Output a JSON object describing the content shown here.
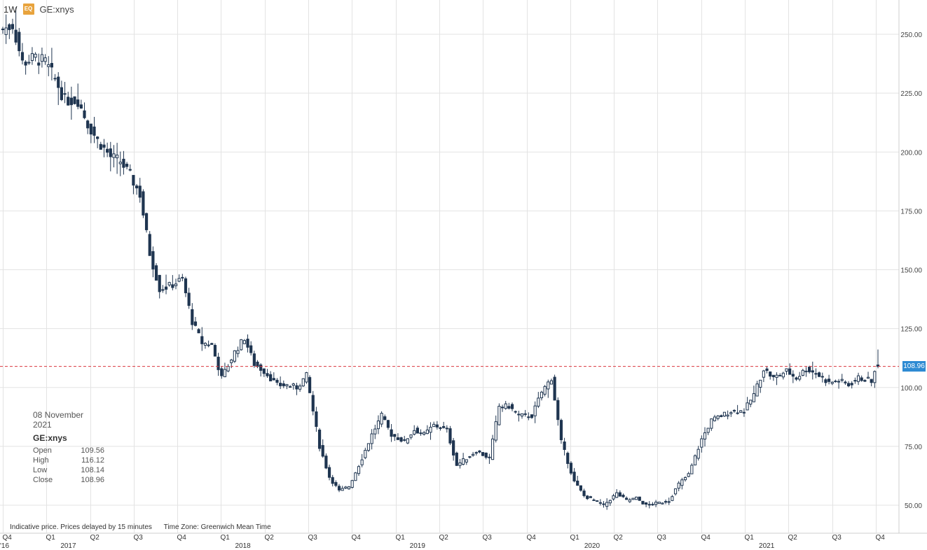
{
  "header": {
    "interval": "1W",
    "badge": "EQ",
    "symbol": "GE:xnys"
  },
  "info": {
    "date": "08 November 2021",
    "symbol": "GE:xnys",
    "rows": [
      {
        "label": "Open",
        "value": "109.56"
      },
      {
        "label": "High",
        "value": "116.12"
      },
      {
        "label": "Low",
        "value": "108.14"
      },
      {
        "label": "Close",
        "value": "108.96"
      }
    ]
  },
  "footer": {
    "note": "Indicative price. Prices delayed by 15 minutes",
    "timezone": "Time Zone: Greenwich Mean Time"
  },
  "last_price_label": "108.96",
  "colors": {
    "candle": "#1f3550",
    "grid": "#e3e3e3",
    "last_line": "#d9363e",
    "price_tag": "#2e8bd3"
  },
  "chart_data": {
    "type": "candlestick",
    "interval": "weekly",
    "ylim": [
      45,
      260
    ],
    "y_ticks": [
      "50.00",
      "75.00",
      "100.00",
      "125.00",
      "150.00",
      "175.00",
      "200.00",
      "225.00",
      "250.00"
    ],
    "y_tick_values": [
      50,
      75,
      100,
      125,
      150,
      175,
      200,
      225,
      250
    ],
    "quarter_labels": [
      "Q4",
      "Q1",
      "Q2",
      "Q3",
      "Q4",
      "Q1",
      "Q2",
      "Q3",
      "Q4",
      "Q1",
      "Q2",
      "Q3",
      "Q4",
      "Q1",
      "Q2",
      "Q3",
      "Q4",
      "Q1",
      "Q2",
      "Q3",
      "Q4"
    ],
    "year_labels": [
      "'16",
      "2017",
      "2018",
      "2019",
      "2020",
      "2021"
    ],
    "last_price": 108.96,
    "last_candle": {
      "open": 109.56,
      "high": 116.12,
      "low": 108.14,
      "close": 108.96
    },
    "close_path": [
      {
        "week": 0,
        "close": 252
      },
      {
        "week": 3,
        "close": 254
      },
      {
        "week": 6,
        "close": 238
      },
      {
        "week": 10,
        "close": 240
      },
      {
        "week": 13,
        "close": 238
      },
      {
        "week": 16,
        "close": 231
      },
      {
        "week": 19,
        "close": 222
      },
      {
        "week": 23,
        "close": 222
      },
      {
        "week": 26,
        "close": 212
      },
      {
        "week": 29,
        "close": 205
      },
      {
        "week": 33,
        "close": 198
      },
      {
        "week": 36,
        "close": 196
      },
      {
        "week": 39,
        "close": 190
      },
      {
        "week": 42,
        "close": 182
      },
      {
        "week": 45,
        "close": 157
      },
      {
        "week": 48,
        "close": 142
      },
      {
        "week": 51,
        "close": 143
      },
      {
        "week": 55,
        "close": 146
      },
      {
        "week": 58,
        "close": 128
      },
      {
        "week": 61,
        "close": 119
      },
      {
        "week": 64,
        "close": 118
      },
      {
        "week": 67,
        "close": 104
      },
      {
        "week": 71,
        "close": 115
      },
      {
        "week": 74,
        "close": 121
      },
      {
        "week": 77,
        "close": 110
      },
      {
        "week": 80,
        "close": 107
      },
      {
        "week": 84,
        "close": 101
      },
      {
        "week": 87,
        "close": 101
      },
      {
        "week": 90,
        "close": 100
      },
      {
        "week": 93,
        "close": 105
      },
      {
        "week": 97,
        "close": 75
      },
      {
        "week": 100,
        "close": 62
      },
      {
        "week": 103,
        "close": 56
      },
      {
        "week": 106,
        "close": 58
      },
      {
        "week": 110,
        "close": 70
      },
      {
        "week": 113,
        "close": 80
      },
      {
        "week": 116,
        "close": 88
      },
      {
        "week": 119,
        "close": 80
      },
      {
        "week": 123,
        "close": 77
      },
      {
        "week": 126,
        "close": 82
      },
      {
        "week": 129,
        "close": 80
      },
      {
        "week": 132,
        "close": 84
      },
      {
        "week": 136,
        "close": 82
      },
      {
        "week": 139,
        "close": 67
      },
      {
        "week": 142,
        "close": 70
      },
      {
        "week": 145,
        "close": 73
      },
      {
        "week": 149,
        "close": 70
      },
      {
        "week": 152,
        "close": 92
      },
      {
        "week": 155,
        "close": 92
      },
      {
        "week": 158,
        "close": 88
      },
      {
        "week": 162,
        "close": 88
      },
      {
        "week": 165,
        "close": 98
      },
      {
        "week": 168,
        "close": 104
      },
      {
        "week": 171,
        "close": 77
      },
      {
        "week": 175,
        "close": 60
      },
      {
        "week": 178,
        "close": 54
      },
      {
        "week": 181,
        "close": 52
      },
      {
        "week": 184,
        "close": 50
      },
      {
        "week": 188,
        "close": 55
      },
      {
        "week": 191,
        "close": 52
      },
      {
        "week": 194,
        "close": 53
      },
      {
        "week": 197,
        "close": 50
      },
      {
        "week": 201,
        "close": 51
      },
      {
        "week": 204,
        "close": 52
      },
      {
        "week": 207,
        "close": 59
      },
      {
        "week": 210,
        "close": 63
      },
      {
        "week": 214,
        "close": 78
      },
      {
        "week": 217,
        "close": 86
      },
      {
        "week": 220,
        "close": 88
      },
      {
        "week": 223,
        "close": 90
      },
      {
        "week": 227,
        "close": 90
      },
      {
        "week": 230,
        "close": 97
      },
      {
        "week": 233,
        "close": 108
      },
      {
        "week": 236,
        "close": 104
      },
      {
        "week": 240,
        "close": 107
      },
      {
        "week": 243,
        "close": 104
      },
      {
        "week": 246,
        "close": 108
      },
      {
        "week": 249,
        "close": 106
      },
      {
        "week": 253,
        "close": 102
      },
      {
        "week": 256,
        "close": 103
      },
      {
        "week": 259,
        "close": 101
      },
      {
        "week": 262,
        "close": 104
      },
      {
        "week": 266,
        "close": 103
      },
      {
        "week": 268,
        "close": 108.96
      }
    ]
  }
}
